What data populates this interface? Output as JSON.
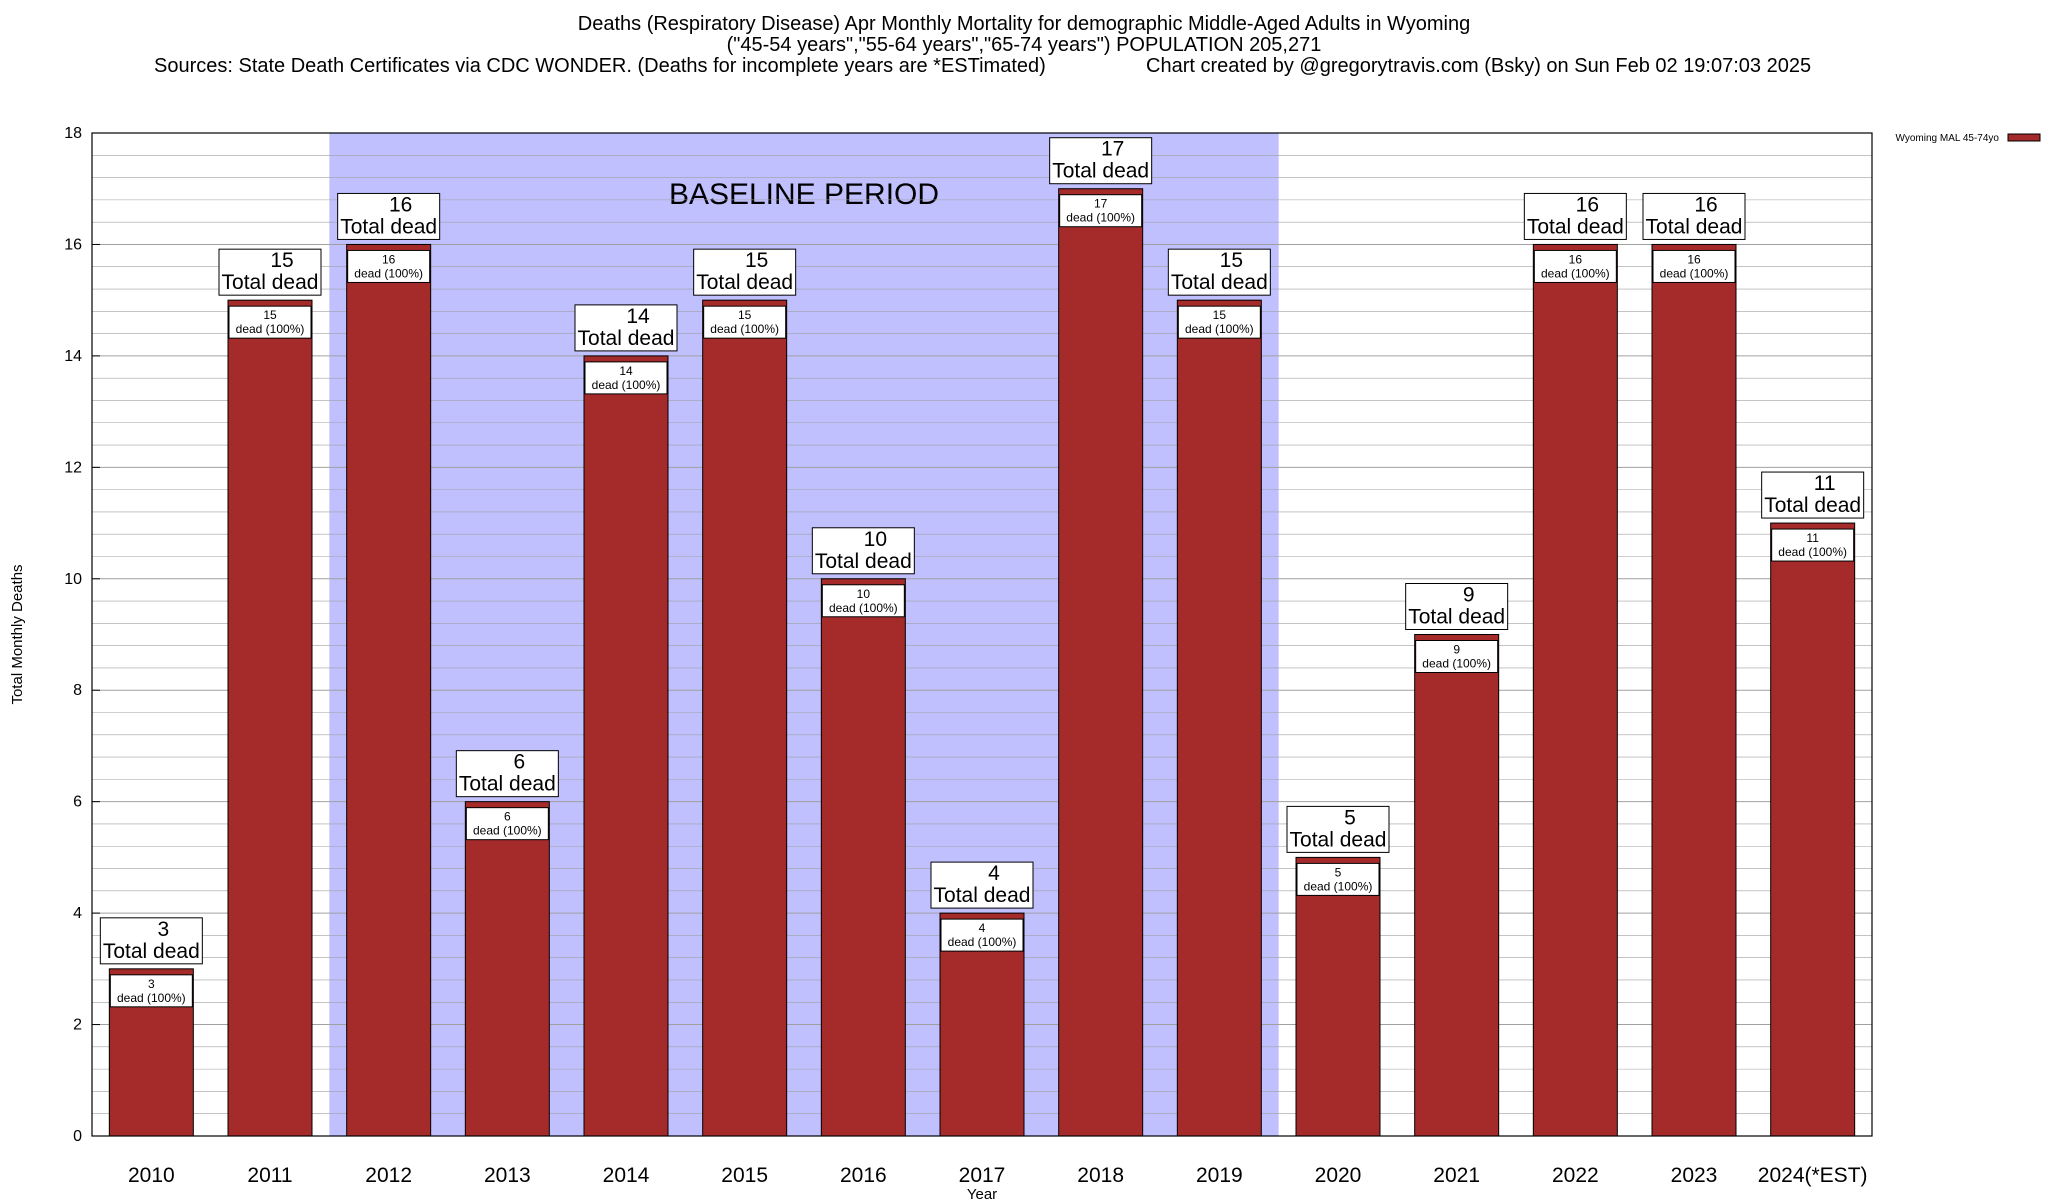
{
  "header": {
    "title_line1": "Deaths (Respiratory Disease) Apr Monthly Mortality for demographic Middle-Aged Adults in Wyoming",
    "title_line2": "(\"45-54 years\",\"55-64 years\",\"65-74 years\") POPULATION 205,271",
    "sources": "Sources: State Death Certificates via CDC WONDER. (Deaths for incomplete years are *ESTimated)",
    "credit": "Chart created by @gregorytravis.com (Bsky) on Sun Feb 02 19:07:03 2025"
  },
  "chart_data": {
    "type": "bar",
    "categories": [
      "2010",
      "2011",
      "2012",
      "2013",
      "2014",
      "2015",
      "2016",
      "2017",
      "2018",
      "2019",
      "2020",
      "2021",
      "2022",
      "2023",
      "2024(*EST)"
    ],
    "series": [
      {
        "name": "Wyoming MAL 45-74yo",
        "values": [
          3,
          15,
          16,
          6,
          14,
          15,
          10,
          4,
          17,
          15,
          5,
          9,
          16,
          16,
          11
        ]
      }
    ],
    "total_label": "Total dead",
    "inner_label_suffix": "dead (100%)",
    "xlabel": "Year",
    "ylabel": "Total Monthly Deaths",
    "ylim": [
      0,
      18
    ],
    "yticks": [
      0,
      2,
      4,
      6,
      8,
      10,
      12,
      14,
      16,
      18
    ],
    "grid": true,
    "legend_position": "top-right",
    "baseline": {
      "label": "BASELINE PERIOD",
      "start": "2012",
      "end": "2019"
    },
    "colors": {
      "bar": "#a52a2a",
      "baseline": "#c0c0ff",
      "grid": "#a0a0a0"
    }
  }
}
